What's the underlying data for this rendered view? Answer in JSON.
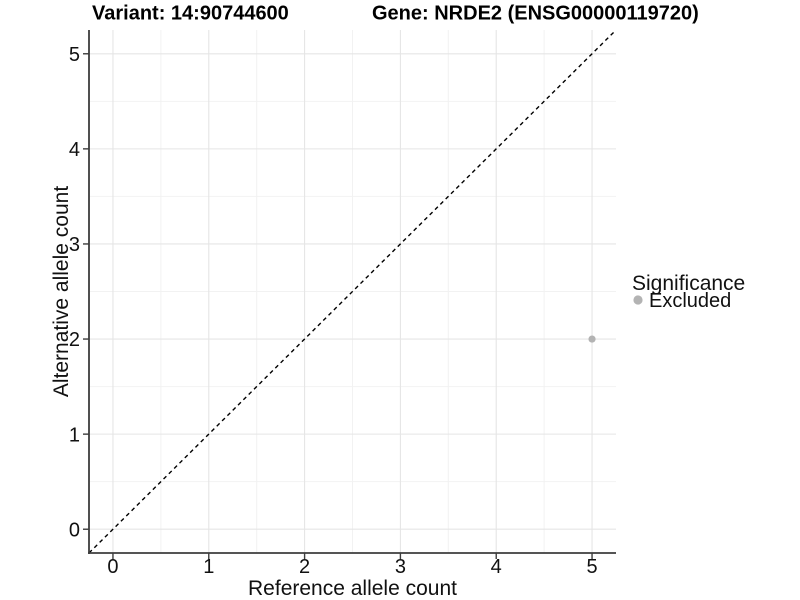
{
  "chart_data": {
    "type": "scatter",
    "title_parts": [
      "Variant: 14:90744600",
      "Gene: NRDE2 (ENSG00000119720)"
    ],
    "xlabel": "Reference allele count",
    "ylabel": "Alternative allele count",
    "xlim": [
      0,
      5
    ],
    "ylim": [
      0,
      5
    ],
    "x_ticks": [
      "0",
      "1",
      "2",
      "3",
      "4",
      "5"
    ],
    "y_ticks": [
      "0",
      "1",
      "2",
      "3",
      "4",
      "5"
    ],
    "grid": {
      "major": true,
      "minor": true
    },
    "identity_line": {
      "slope": 1,
      "intercept": 0,
      "style": "dashed",
      "color": "#000000"
    },
    "series": [
      {
        "name": "Excluded",
        "color": "#b3b3b3",
        "points": [
          {
            "x": 5,
            "y": 2
          }
        ]
      }
    ],
    "legend": {
      "title": "Significance",
      "position": "right",
      "items": [
        {
          "label": "Excluded",
          "color": "#b3b3b3"
        }
      ]
    },
    "colors": {
      "background": "#ffffff",
      "grid_major": "#e5e5e5",
      "grid_minor": "#f2f2f2",
      "axis_line": "#3d3d3d",
      "text": "#111111"
    }
  }
}
